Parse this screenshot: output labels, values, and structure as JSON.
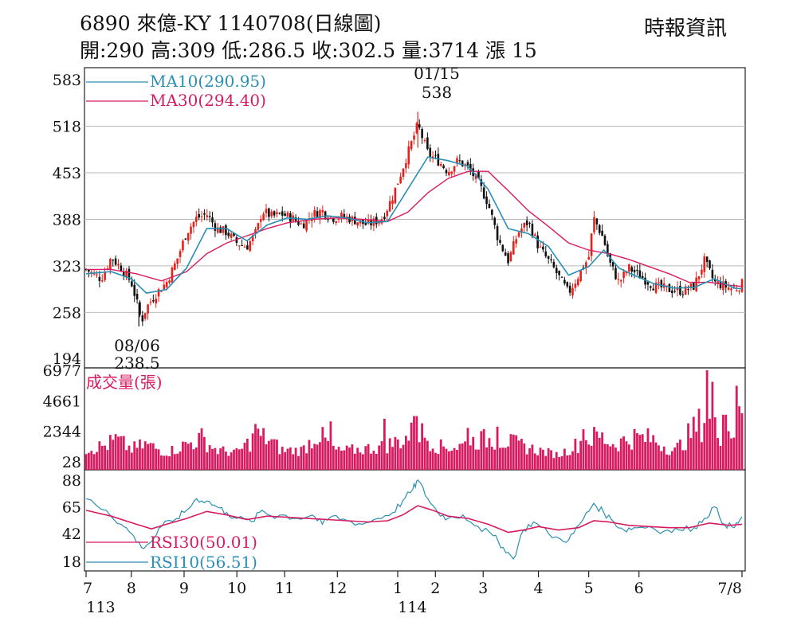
{
  "header": {
    "title": "6890  來億-KY 1140708(日線圖)",
    "ohlc": "開:290 高:309 低:286.5 收:302.5 量:3714 漲 15",
    "source": "時報資訊"
  },
  "chart_data": {
    "type": "candlestick",
    "colors": {
      "up": "#e8201c",
      "down": "#111111",
      "ma10": "#2a8fb4",
      "ma30": "#d81b60",
      "volume": "#d81b60",
      "rsi30": "#d81b60",
      "rsi10": "#2a8fb4"
    },
    "price_panel": {
      "yticks": [
        583,
        518,
        453,
        388,
        323,
        258,
        194
      ],
      "ylim": [
        194,
        583
      ],
      "legend": [
        {
          "key": "ma10",
          "label": "MA10(290.95)"
        },
        {
          "key": "ma30",
          "label": "MA30(294.40)"
        }
      ],
      "annotations": [
        {
          "date_line": "01/15",
          "value_line": "538",
          "price": 538,
          "month_pos": 6.6
        },
        {
          "date_line": "08/06",
          "value_line": "238.5",
          "price": 238.5,
          "month_pos": 1.05
        }
      ],
      "approx_close_path": [
        [
          0.0,
          318
        ],
        [
          0.3,
          305
        ],
        [
          0.5,
          335
        ],
        [
          0.7,
          320
        ],
        [
          0.9,
          300
        ],
        [
          1.0,
          275
        ],
        [
          1.1,
          245
        ],
        [
          1.2,
          265
        ],
        [
          1.4,
          285
        ],
        [
          1.6,
          300
        ],
        [
          1.8,
          330
        ],
        [
          2.0,
          370
        ],
        [
          2.2,
          390
        ],
        [
          2.4,
          395
        ],
        [
          2.6,
          375
        ],
        [
          2.8,
          370
        ],
        [
          3.0,
          355
        ],
        [
          3.2,
          350
        ],
        [
          3.4,
          372
        ],
        [
          3.5,
          400
        ],
        [
          3.7,
          392
        ],
        [
          3.9,
          395
        ],
        [
          4.1,
          390
        ],
        [
          4.3,
          380
        ],
        [
          4.5,
          395
        ],
        [
          4.7,
          400
        ],
        [
          4.9,
          390
        ],
        [
          5.1,
          392
        ],
        [
          5.3,
          388
        ],
        [
          5.6,
          380
        ],
        [
          5.9,
          390
        ],
        [
          6.1,
          420
        ],
        [
          6.3,
          460
        ],
        [
          6.5,
          500
        ],
        [
          6.6,
          520
        ],
        [
          6.8,
          480
        ],
        [
          7.0,
          470
        ],
        [
          7.2,
          455
        ],
        [
          7.4,
          470
        ],
        [
          7.6,
          460
        ],
        [
          7.8,
          440
        ],
        [
          8.0,
          410
        ],
        [
          8.2,
          360
        ],
        [
          8.4,
          330
        ],
        [
          8.6,
          370
        ],
        [
          8.8,
          385
        ],
        [
          9.0,
          350
        ],
        [
          9.3,
          320
        ],
        [
          9.6,
          285
        ],
        [
          9.8,
          310
        ],
        [
          10.0,
          335
        ],
        [
          10.1,
          390
        ],
        [
          10.3,
          360
        ],
        [
          10.4,
          330
        ],
        [
          10.6,
          300
        ],
        [
          10.8,
          320
        ],
        [
          11.0,
          310
        ],
        [
          11.3,
          295
        ],
        [
          11.6,
          290
        ],
        [
          11.9,
          288
        ],
        [
          12.1,
          295
        ],
        [
          12.3,
          330
        ],
        [
          12.5,
          300
        ],
        [
          12.7,
          295
        ],
        [
          12.9,
          290
        ],
        [
          13.05,
          298
        ]
      ],
      "ma10_path": [
        [
          0.0,
          312
        ],
        [
          0.5,
          315
        ],
        [
          0.9,
          305
        ],
        [
          1.2,
          285
        ],
        [
          1.6,
          290
        ],
        [
          2.0,
          320
        ],
        [
          2.4,
          375
        ],
        [
          2.8,
          375
        ],
        [
          3.2,
          358
        ],
        [
          3.6,
          380
        ],
        [
          4.0,
          390
        ],
        [
          4.4,
          388
        ],
        [
          4.8,
          393
        ],
        [
          5.2,
          390
        ],
        [
          5.6,
          383
        ],
        [
          6.0,
          385
        ],
        [
          6.4,
          430
        ],
        [
          6.8,
          475
        ],
        [
          7.2,
          470
        ],
        [
          7.6,
          462
        ],
        [
          8.0,
          430
        ],
        [
          8.4,
          375
        ],
        [
          8.8,
          368
        ],
        [
          9.2,
          350
        ],
        [
          9.6,
          310
        ],
        [
          10.0,
          322
        ],
        [
          10.3,
          345
        ],
        [
          10.6,
          320
        ],
        [
          10.9,
          310
        ],
        [
          11.3,
          298
        ],
        [
          11.7,
          292
        ],
        [
          12.1,
          293
        ],
        [
          12.5,
          305
        ],
        [
          12.9,
          292
        ],
        [
          13.05,
          291
        ]
      ],
      "ma30_path": [
        [
          0.0,
          318
        ],
        [
          0.5,
          318
        ],
        [
          1.0,
          312
        ],
        [
          1.5,
          302
        ],
        [
          2.0,
          315
        ],
        [
          2.4,
          340
        ],
        [
          2.8,
          355
        ],
        [
          3.2,
          365
        ],
        [
          3.6,
          375
        ],
        [
          4.0,
          383
        ],
        [
          4.5,
          388
        ],
        [
          5.0,
          390
        ],
        [
          5.5,
          388
        ],
        [
          6.0,
          385
        ],
        [
          6.4,
          398
        ],
        [
          6.8,
          425
        ],
        [
          7.2,
          445
        ],
        [
          7.6,
          455
        ],
        [
          8.0,
          455
        ],
        [
          8.4,
          428
        ],
        [
          8.8,
          400
        ],
        [
          9.2,
          378
        ],
        [
          9.6,
          355
        ],
        [
          10.0,
          345
        ],
        [
          10.4,
          340
        ],
        [
          10.8,
          332
        ],
        [
          11.2,
          322
        ],
        [
          11.6,
          312
        ],
        [
          12.0,
          300
        ],
        [
          12.4,
          300
        ],
        [
          12.8,
          296
        ],
        [
          13.05,
          294.4
        ]
      ]
    },
    "volume_panel": {
      "title": "成交量(張)",
      "yticks": [
        6977,
        4661,
        2344,
        28
      ],
      "ylim": [
        28,
        6977
      ],
      "approx_level_path": [
        [
          0.0,
          1100
        ],
        [
          0.4,
          1400
        ],
        [
          0.6,
          1900
        ],
        [
          0.9,
          1100
        ],
        [
          1.2,
          1500
        ],
        [
          1.6,
          800
        ],
        [
          2.0,
          1500
        ],
        [
          2.3,
          2000
        ],
        [
          2.6,
          1000
        ],
        [
          3.0,
          800
        ],
        [
          3.4,
          2200
        ],
        [
          3.6,
          2000
        ],
        [
          3.9,
          1000
        ],
        [
          4.3,
          1000
        ],
        [
          4.6,
          2400
        ],
        [
          5.0,
          900
        ],
        [
          5.5,
          1100
        ],
        [
          5.9,
          1300
        ],
        [
          6.3,
          1900
        ],
        [
          6.6,
          2700
        ],
        [
          7.0,
          1300
        ],
        [
          7.4,
          1300
        ],
        [
          7.8,
          1900
        ],
        [
          8.2,
          1900
        ],
        [
          8.5,
          1600
        ],
        [
          8.9,
          1100
        ],
        [
          9.4,
          600
        ],
        [
          9.9,
          1800
        ],
        [
          10.2,
          2200
        ],
        [
          10.5,
          1500
        ],
        [
          10.9,
          2100
        ],
        [
          11.3,
          1900
        ],
        [
          11.7,
          900
        ],
        [
          12.0,
          2300
        ],
        [
          12.3,
          3600
        ],
        [
          12.6,
          2400
        ],
        [
          12.9,
          2700
        ],
        [
          13.05,
          3714
        ]
      ],
      "spikes": [
        [
          3.35,
          2900
        ],
        [
          4.85,
          3100
        ],
        [
          5.95,
          3300
        ],
        [
          6.55,
          3500
        ],
        [
          7.6,
          2600
        ],
        [
          8.2,
          2700
        ],
        [
          9.9,
          2500
        ],
        [
          12.35,
          6977
        ],
        [
          12.45,
          6100
        ],
        [
          12.7,
          3600
        ],
        [
          12.95,
          5800
        ],
        [
          13.05,
          3714
        ]
      ]
    },
    "rsi_panel": {
      "yticks": [
        88,
        65,
        42,
        18
      ],
      "ylim": [
        18,
        88
      ],
      "legend": [
        {
          "key": "rsi30",
          "label": "RSI30(50.01)"
        },
        {
          "key": "rsi10",
          "label": "RSI10(56.51)"
        }
      ],
      "rsi10_path": [
        [
          0.0,
          72
        ],
        [
          0.4,
          62
        ],
        [
          0.7,
          50
        ],
        [
          0.9,
          42
        ],
        [
          1.1,
          30
        ],
        [
          1.3,
          35
        ],
        [
          1.5,
          48
        ],
        [
          1.8,
          55
        ],
        [
          2.0,
          62
        ],
        [
          2.2,
          72
        ],
        [
          2.4,
          70
        ],
        [
          2.6,
          65
        ],
        [
          2.8,
          60
        ],
        [
          3.0,
          55
        ],
        [
          3.3,
          52
        ],
        [
          3.5,
          62
        ],
        [
          3.7,
          57
        ],
        [
          3.9,
          58
        ],
        [
          4.2,
          55
        ],
        [
          4.5,
          58
        ],
        [
          4.7,
          50
        ],
        [
          4.9,
          57
        ],
        [
          5.2,
          53
        ],
        [
          5.5,
          50
        ],
        [
          5.8,
          55
        ],
        [
          6.1,
          60
        ],
        [
          6.3,
          70
        ],
        [
          6.5,
          80
        ],
        [
          6.6,
          88
        ],
        [
          6.8,
          72
        ],
        [
          7.0,
          60
        ],
        [
          7.2,
          55
        ],
        [
          7.5,
          58
        ],
        [
          7.8,
          48
        ],
        [
          8.1,
          40
        ],
        [
          8.3,
          30
        ],
        [
          8.5,
          20
        ],
        [
          8.7,
          45
        ],
        [
          8.9,
          52
        ],
        [
          9.2,
          42
        ],
        [
          9.5,
          35
        ],
        [
          9.7,
          42
        ],
        [
          9.9,
          55
        ],
        [
          10.1,
          68
        ],
        [
          10.3,
          60
        ],
        [
          10.5,
          52
        ],
        [
          10.7,
          45
        ],
        [
          10.9,
          47
        ],
        [
          11.2,
          48
        ],
        [
          11.5,
          44
        ],
        [
          11.8,
          45
        ],
        [
          12.1,
          47
        ],
        [
          12.3,
          55
        ],
        [
          12.5,
          65
        ],
        [
          12.7,
          50
        ],
        [
          12.9,
          47
        ],
        [
          13.05,
          56.51
        ]
      ],
      "rsi30_path": [
        [
          0.0,
          62
        ],
        [
          0.5,
          57
        ],
        [
          1.0,
          50
        ],
        [
          1.3,
          46
        ],
        [
          1.6,
          50
        ],
        [
          2.0,
          55
        ],
        [
          2.4,
          61
        ],
        [
          2.8,
          58
        ],
        [
          3.2,
          54
        ],
        [
          3.6,
          57
        ],
        [
          4.0,
          56
        ],
        [
          4.4,
          55
        ],
        [
          4.8,
          54
        ],
        [
          5.2,
          53
        ],
        [
          5.6,
          52
        ],
        [
          6.0,
          53
        ],
        [
          6.3,
          58
        ],
        [
          6.6,
          66
        ],
        [
          6.9,
          62
        ],
        [
          7.2,
          57
        ],
        [
          7.6,
          55
        ],
        [
          8.0,
          50
        ],
        [
          8.4,
          43
        ],
        [
          8.7,
          45
        ],
        [
          9.0,
          48
        ],
        [
          9.4,
          45
        ],
        [
          9.8,
          47
        ],
        [
          10.1,
          53
        ],
        [
          10.4,
          52
        ],
        [
          10.8,
          49
        ],
        [
          11.2,
          48
        ],
        [
          11.6,
          47
        ],
        [
          12.0,
          47
        ],
        [
          12.4,
          51
        ],
        [
          12.8,
          49
        ],
        [
          13.05,
          50.01
        ]
      ]
    },
    "x_axis": {
      "months": [
        {
          "label": "7",
          "pos": 0
        },
        {
          "label": "8",
          "pos": 0.9
        },
        {
          "label": "9",
          "pos": 1.95
        },
        {
          "label": "10",
          "pos": 3.0
        },
        {
          "label": "11",
          "pos": 3.95
        },
        {
          "label": "12",
          "pos": 5.0
        },
        {
          "label": "1",
          "pos": 6.2
        },
        {
          "label": "2",
          "pos": 6.95
        },
        {
          "label": "3",
          "pos": 7.9
        },
        {
          "label": "4",
          "pos": 9.0
        },
        {
          "label": "5",
          "pos": 10.0
        },
        {
          "label": "6",
          "pos": 11.0
        },
        {
          "label": "7/8",
          "pos": 13.05
        }
      ],
      "year_labels": [
        {
          "label": "113",
          "pos": 0.1
        },
        {
          "label": "114",
          "pos": 6.3
        }
      ]
    }
  }
}
